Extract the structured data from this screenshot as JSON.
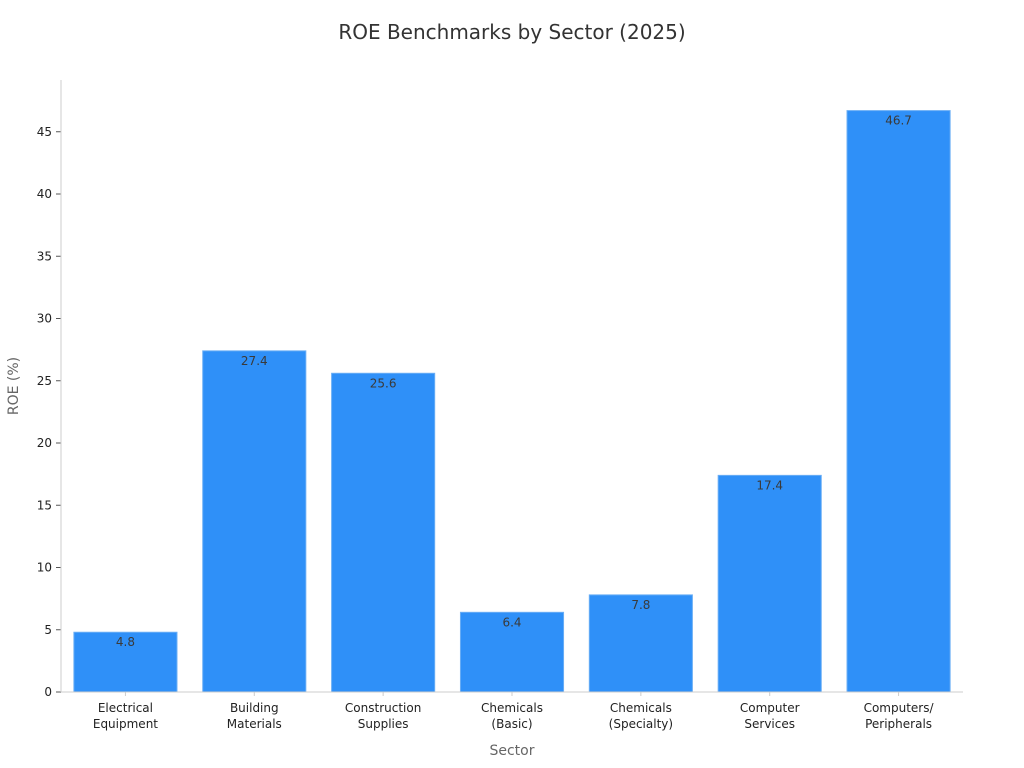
{
  "chart_data": {
    "type": "bar",
    "title": "ROE Benchmarks by Sector (2025)",
    "xlabel": "Sector",
    "ylabel": "ROE (%)",
    "categories": [
      [
        "Electrical",
        "Equipment"
      ],
      [
        "Building",
        "Materials"
      ],
      [
        "Construction",
        "Supplies"
      ],
      [
        "Chemicals",
        "(Basic)"
      ],
      [
        "Chemicals",
        "(Specialty)"
      ],
      [
        "Computer",
        "Services"
      ],
      [
        "Computers/",
        "Peripherals"
      ]
    ],
    "values": [
      4.8,
      27.4,
      25.6,
      6.4,
      7.8,
      17.4,
      46.7
    ],
    "data_labels": [
      "4.8",
      "27.4",
      "25.6",
      "6.4",
      "7.8",
      "17.4",
      "46.7"
    ],
    "ylim": [
      0,
      49
    ],
    "yticks": [
      0,
      5,
      10,
      15,
      20,
      25,
      30,
      35,
      40,
      45
    ],
    "grid": false,
    "colors": {
      "bar": "#2f90f8",
      "bar_edge": "#6aaef5",
      "axis": "#cccccc"
    }
  }
}
